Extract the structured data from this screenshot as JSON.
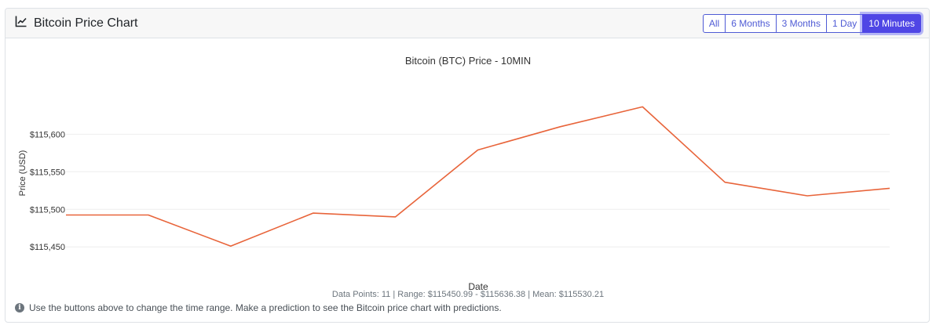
{
  "header": {
    "title": "Bitcoin Price Chart",
    "title_icon": "line-chart-icon",
    "range_buttons": [
      {
        "label": "All",
        "active": false
      },
      {
        "label": "6 Months",
        "active": false
      },
      {
        "label": "3 Months",
        "active": false
      },
      {
        "label": "1 Day",
        "active": false
      },
      {
        "label": "10 Minutes",
        "active": true
      }
    ]
  },
  "chart_data": {
    "type": "line",
    "title": "Bitcoin (BTC) Price - 10MIN",
    "xlabel": "Date",
    "ylabel": "Price (USD)",
    "ylim": [
      115420,
      115665
    ],
    "yticks": [
      115450,
      115500,
      115550,
      115600
    ],
    "ytick_labels": [
      "$115,450",
      "$115,500",
      "$115,550",
      "$115,600"
    ],
    "grid": true,
    "series": [
      {
        "color": "#e8643a",
        "values": [
          115492.5,
          115492.5,
          115451.0,
          115495.0,
          115490.0,
          115579.0,
          115610.0,
          115636.4,
          115536.0,
          115518.0,
          115528.0
        ]
      }
    ]
  },
  "stats": {
    "text": "Data Points: 11 | Range: $115450.99 - $115636.38 | Mean: $115530.21"
  },
  "note": {
    "icon": "info-circle-icon",
    "text": "Use the buttons above to change the time range. Make a prediction to see the Bitcoin price chart with predictions."
  }
}
